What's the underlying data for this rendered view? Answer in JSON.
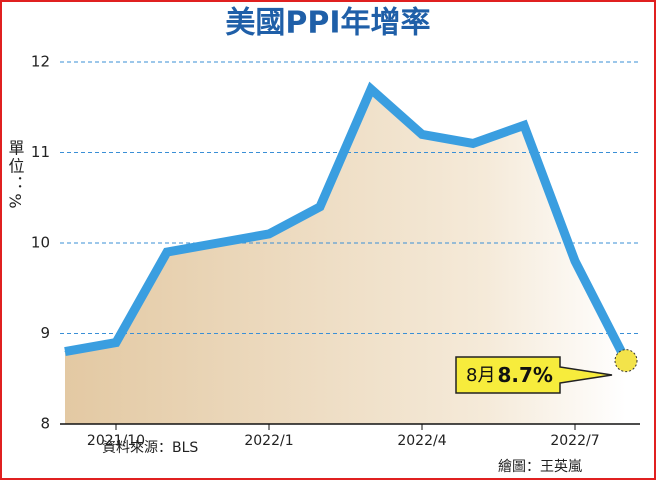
{
  "chart_data": {
    "type": "area-line",
    "title": "美國PPI年增率",
    "y_label": "單位：%",
    "source": "資料來源：BLS",
    "credit": "繪圖：王英嵐",
    "categories": [
      null,
      "2021/10",
      null,
      null,
      "2022/1",
      null,
      null,
      "2022/4",
      null,
      null,
      "2022/7",
      null
    ],
    "values": [
      8.8,
      8.9,
      9.9,
      10.0,
      10.1,
      10.4,
      11.7,
      11.2,
      11.1,
      11.3,
      9.8,
      8.7
    ],
    "value_labels": [
      null,
      null,
      null,
      null,
      null,
      null,
      null,
      null,
      null,
      null,
      null,
      "8.7%"
    ],
    "annotation": "8月",
    "color": "#3a9ee0",
    "ylim": [
      8,
      12
    ],
    "yticks": [
      8,
      9,
      10,
      11,
      12
    ],
    "grid": true
  }
}
